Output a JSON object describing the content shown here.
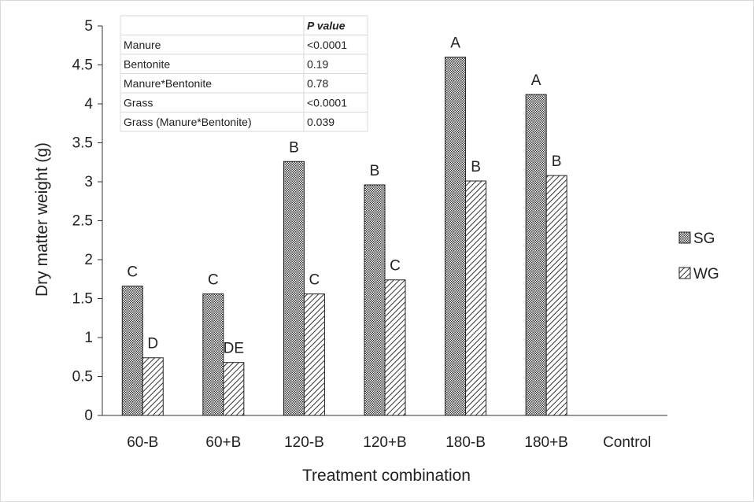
{
  "chart_data": {
    "type": "bar",
    "title": "",
    "xlabel": "Treatment combination",
    "ylabel": "Dry matter weight (g)",
    "ylim": [
      0,
      5
    ],
    "yticks": [
      "0",
      "0.5",
      "1",
      "1.5",
      "2",
      "2.5",
      "3",
      "3.5",
      "4",
      "4.5",
      "5"
    ],
    "categories": [
      "60-B",
      "60+B",
      "120-B",
      "120+B",
      "180-B",
      "180+B",
      "Control"
    ],
    "series": [
      {
        "name": "SG",
        "values": [
          1.66,
          1.56,
          3.26,
          2.96,
          4.6,
          4.12,
          0
        ],
        "letters": [
          "C",
          "C",
          "B",
          "B",
          "A",
          "A",
          ""
        ],
        "pattern": "crosshatch"
      },
      {
        "name": "WG",
        "values": [
          0.74,
          0.68,
          1.56,
          1.74,
          3.01,
          3.08,
          0
        ],
        "letters": [
          "D",
          "DE",
          "C",
          "C",
          "B",
          "B",
          ""
        ],
        "pattern": "diagonal"
      }
    ],
    "legend_position": "right",
    "grid": false
  },
  "stats_table": {
    "header": "P value",
    "rows": [
      {
        "factor": "Manure",
        "p": "<0.0001"
      },
      {
        "factor": "Bentonite",
        "p": "0.19"
      },
      {
        "factor": "Manure*Bentonite",
        "p": "0.78"
      },
      {
        "factor": "Grass",
        "p": "<0.0001"
      },
      {
        "factor": "Grass (Manure*Bentonite)",
        "p": "0.039"
      }
    ]
  }
}
